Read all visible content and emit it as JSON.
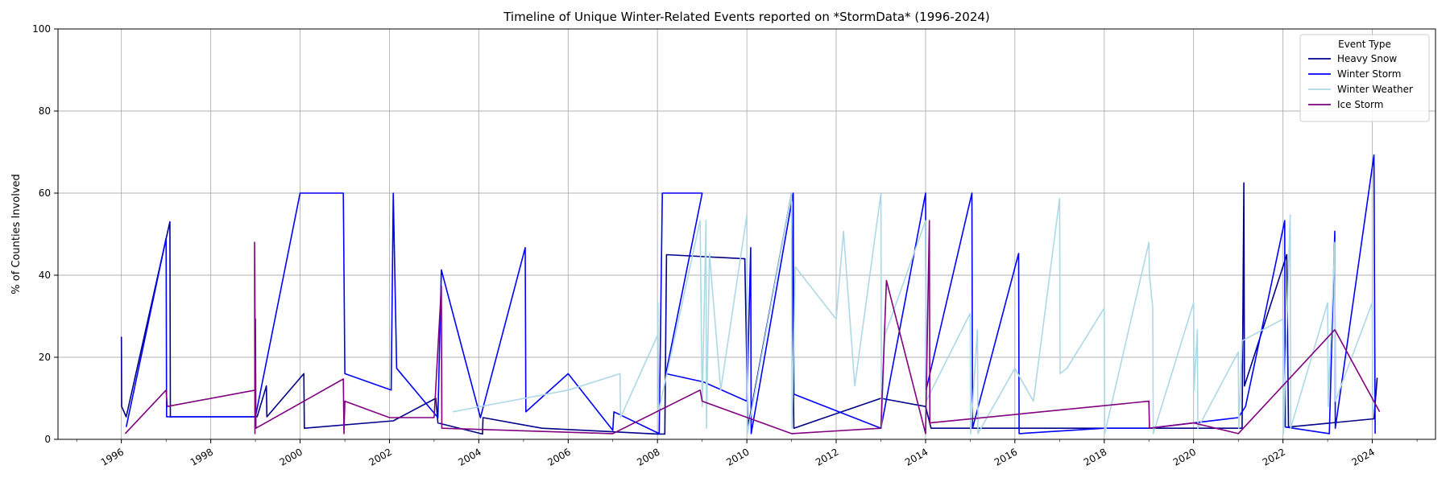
{
  "chart_data": {
    "type": "line",
    "title": "Timeline of Unique Winter-Related Events reported on *StormData* (1996-2024)",
    "xlabel": "",
    "ylabel": "% of Counties Involved",
    "xlim": [
      "1994-08-01",
      "2025-06-01"
    ],
    "ylim": [
      0,
      100
    ],
    "x_ticks": [
      "1996",
      "1998",
      "2000",
      "2002",
      "2004",
      "2006",
      "2008",
      "2010",
      "2012",
      "2014",
      "2016",
      "2018",
      "2020",
      "2022",
      "2024"
    ],
    "y_ticks": [
      0,
      20,
      40,
      60,
      80,
      100
    ],
    "grid": true,
    "legend": {
      "title": "Event Type",
      "position": "top-right"
    },
    "series": [
      {
        "name": "Heavy Snow",
        "color": "#00008b",
        "points": [
          [
            "1996-01-01",
            25
          ],
          [
            "1996-01-03",
            8
          ],
          [
            "1996-02-10",
            5.5
          ],
          [
            "1997-02-01",
            53
          ],
          [
            "1997-02-05",
            5.5
          ],
          [
            "1999-01-15",
            5.5
          ],
          [
            "1999-04-01",
            13
          ],
          [
            "1999-04-05",
            5.5
          ],
          [
            "2000-02-01",
            16
          ],
          [
            "2000-02-05",
            2.7
          ],
          [
            "2002-02-01",
            4.5
          ],
          [
            "2003-01-15",
            10
          ],
          [
            "2003-02-01",
            4
          ],
          [
            "2004-02-01",
            1.3
          ],
          [
            "2004-02-05",
            5.3
          ],
          [
            "2005-06-01",
            2.7
          ],
          [
            "2008-01-01",
            1.3
          ],
          [
            "2008-03-01",
            1.3
          ],
          [
            "2008-03-15",
            45
          ],
          [
            "2009-12-15",
            44
          ],
          [
            "2010-01-10",
            3
          ],
          [
            "2011-01-01",
            60
          ],
          [
            "2011-01-20",
            2.7
          ],
          [
            "2013-01-01",
            10
          ],
          [
            "2014-01-01",
            8
          ],
          [
            "2014-02-15",
            2.7
          ],
          [
            "2015-03-01",
            2.7
          ],
          [
            "2021-02-01",
            2.7
          ],
          [
            "2021-02-15",
            62.5
          ],
          [
            "2021-02-20",
            13
          ],
          [
            "2022-02-01",
            45
          ],
          [
            "2022-02-15",
            3
          ],
          [
            "2024-01-15",
            5
          ],
          [
            "2024-02-10",
            15
          ]
        ]
      },
      {
        "name": "Winter Storm",
        "color": "#0000ff",
        "points": [
          [
            "1996-02-10",
            3
          ],
          [
            "1997-01-01",
            49
          ],
          [
            "1997-01-05",
            5.5
          ],
          [
            "1999-01-01",
            5.5
          ],
          [
            "2000-01-01",
            60
          ],
          [
            "2000-12-20",
            60
          ],
          [
            "2001-01-01",
            16
          ],
          [
            "2002-01-15",
            12
          ],
          [
            "2002-02-01",
            60
          ],
          [
            "2002-03-01",
            17.3
          ],
          [
            "2003-02-01",
            5.3
          ],
          [
            "2003-03-01",
            41.3
          ],
          [
            "2004-01-15",
            5.3
          ],
          [
            "2005-01-15",
            46.7
          ],
          [
            "2005-01-20",
            6.7
          ],
          [
            "2006-01-01",
            16
          ],
          [
            "2007-01-01",
            2.2
          ],
          [
            "2007-01-10",
            6.7
          ],
          [
            "2008-01-15",
            1.4
          ],
          [
            "2008-02-10",
            60
          ],
          [
            "2009-01-01",
            60
          ],
          [
            "2008-03-10",
            16
          ],
          [
            "2009-01-10",
            14
          ],
          [
            "2010-01-01",
            9.3
          ],
          [
            "2010-02-01",
            46.7
          ],
          [
            "2010-02-05",
            1.4
          ],
          [
            "2011-01-15",
            60
          ],
          [
            "2011-01-20",
            11
          ],
          [
            "2013-01-01",
            2.7
          ],
          [
            "2014-01-01",
            60
          ],
          [
            "2014-01-05",
            12
          ],
          [
            "2015-01-15",
            60
          ],
          [
            "2015-01-20",
            2.7
          ],
          [
            "2016-02-01",
            45.3
          ],
          [
            "2016-02-05",
            1.4
          ],
          [
            "2018-01-01",
            2.7
          ],
          [
            "2019-01-01",
            2.7
          ],
          [
            "2021-01-01",
            5.3
          ],
          [
            "2021-03-01",
            8
          ],
          [
            "2022-01-15",
            53.3
          ],
          [
            "2022-01-20",
            3
          ],
          [
            "2023-01-15",
            1.4
          ],
          [
            "2023-03-01",
            50.7
          ],
          [
            "2023-03-05",
            2.7
          ],
          [
            "2024-01-15",
            69.3
          ],
          [
            "2024-01-25",
            1.4
          ]
        ]
      },
      {
        "name": "Winter Weather",
        "color": "#add8e6",
        "points": [
          [
            "2003-06-01",
            6.7
          ],
          [
            "2006-01-01",
            12
          ],
          [
            "2007-03-01",
            16
          ],
          [
            "2007-03-05",
            5.3
          ],
          [
            "2008-01-01",
            25.3
          ],
          [
            "2008-01-05",
            33.3
          ],
          [
            "2008-01-10",
            6.7
          ],
          [
            "2008-12-15",
            53.3
          ],
          [
            "2009-01-01",
            8
          ],
          [
            "2009-02-01",
            53.3
          ],
          [
            "2009-02-05",
            2.7
          ],
          [
            "2009-03-01",
            45.3
          ],
          [
            "2009-06-01",
            12
          ],
          [
            "2010-01-01",
            54.7
          ],
          [
            "2010-01-05",
            1.4
          ],
          [
            "2011-01-01",
            60
          ],
          [
            "2011-01-05",
            2.7
          ],
          [
            "2011-02-01",
            42
          ],
          [
            "2012-01-01",
            29.3
          ],
          [
            "2012-03-01",
            50.7
          ],
          [
            "2012-06-01",
            13
          ],
          [
            "2013-01-01",
            60
          ],
          [
            "2013-01-05",
            2.7
          ],
          [
            "2013-02-01",
            25.3
          ],
          [
            "2014-01-01",
            53.3
          ],
          [
            "2014-01-05",
            9.3
          ],
          [
            "2015-01-01",
            30.7
          ],
          [
            "2015-01-05",
            1.4
          ],
          [
            "2015-03-01",
            26.7
          ],
          [
            "2015-03-05",
            1.4
          ],
          [
            "2016-01-01",
            17.3
          ],
          [
            "2016-06-01",
            9.3
          ],
          [
            "2017-01-01",
            58.7
          ],
          [
            "2017-01-05",
            16
          ],
          [
            "2017-03-01",
            17.3
          ],
          [
            "2018-01-01",
            32
          ],
          [
            "2018-01-05",
            1.4
          ],
          [
            "2019-01-01",
            48
          ],
          [
            "2019-01-05",
            40
          ],
          [
            "2019-02-01",
            32
          ],
          [
            "2019-02-05",
            1.4
          ],
          [
            "2020-01-01",
            33.3
          ],
          [
            "2020-01-05",
            12
          ],
          [
            "2020-02-01",
            26.7
          ],
          [
            "2020-02-05",
            2.7
          ],
          [
            "2021-01-01",
            21.3
          ],
          [
            "2021-01-05",
            2.7
          ],
          [
            "2021-02-01",
            24
          ],
          [
            "2022-01-01",
            29.3
          ],
          [
            "2022-01-05",
            1.4
          ],
          [
            "2022-03-01",
            54.7
          ],
          [
            "2022-03-05",
            2.7
          ],
          [
            "2023-01-01",
            33.3
          ],
          [
            "2023-01-05",
            8
          ],
          [
            "2023-03-01",
            48
          ],
          [
            "2023-03-05",
            9.3
          ],
          [
            "2024-01-01",
            33.3
          ],
          [
            "2024-01-05",
            6.7
          ]
        ]
      },
      {
        "name": "Ice Storm",
        "color": "#800080",
        "points": [
          [
            "1996-02-01",
            1.4
          ],
          [
            "1997-01-01",
            12
          ],
          [
            "1997-01-10",
            8
          ],
          [
            "1999-01-01",
            12
          ],
          [
            "1998-12-25",
            48
          ],
          [
            "1998-12-28",
            1.4
          ],
          [
            "1999-01-01",
            29.3
          ],
          [
            "1999-01-05",
            2.7
          ],
          [
            "2000-12-20",
            14.7
          ],
          [
            "2000-12-25",
            1.4
          ],
          [
            "2001-01-01",
            9.3
          ],
          [
            "2002-01-01",
            5.3
          ],
          [
            "2003-01-01",
            5.3
          ],
          [
            "2003-03-01",
            37.3
          ],
          [
            "2003-03-05",
            2.7
          ],
          [
            "2007-01-01",
            1.4
          ],
          [
            "2008-12-15",
            12
          ],
          [
            "2009-01-01",
            9.3
          ],
          [
            "2011-01-01",
            1.4
          ],
          [
            "2013-01-01",
            2.7
          ],
          [
            "2013-02-15",
            38.7
          ],
          [
            "2014-01-01",
            1.4
          ],
          [
            "2014-02-01",
            53.3
          ],
          [
            "2014-02-05",
            4
          ],
          [
            "2019-01-01",
            9.3
          ],
          [
            "2019-01-05",
            2.7
          ],
          [
            "2020-01-01",
            4
          ],
          [
            "2021-01-01",
            1.4
          ],
          [
            "2023-03-01",
            26.7
          ],
          [
            "2024-03-01",
            6.7
          ]
        ]
      }
    ]
  }
}
